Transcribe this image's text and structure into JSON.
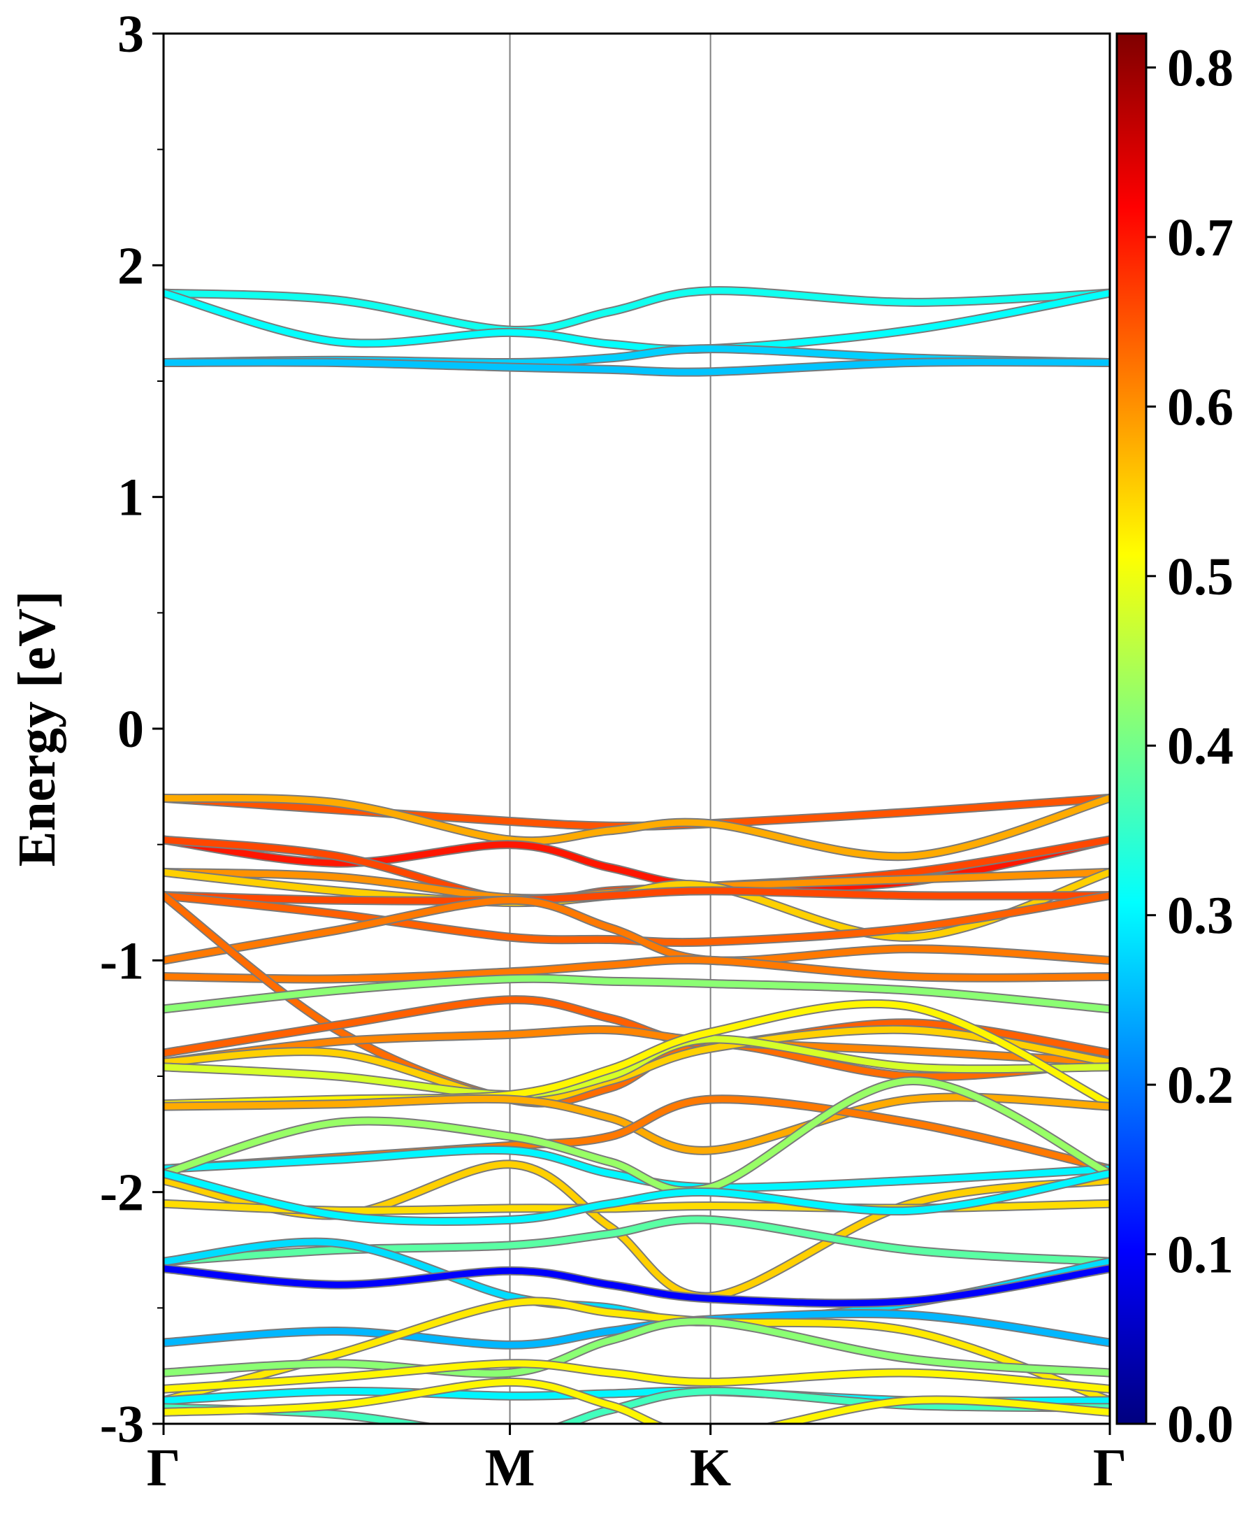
{
  "chart_data": {
    "type": "line",
    "title": "",
    "xlabel": "",
    "ylabel": "Energy [eV]",
    "ylim": [
      -3,
      3
    ],
    "y_ticks": [
      {
        "value": 3,
        "label": "3"
      },
      {
        "value": 2,
        "label": "2"
      },
      {
        "value": 1,
        "label": "1"
      },
      {
        "value": 0,
        "label": "0"
      },
      {
        "value": -1,
        "label": "-1"
      },
      {
        "value": -2,
        "label": "-2"
      },
      {
        "value": -3,
        "label": "-3"
      }
    ],
    "k_points": [
      {
        "label": "Γ",
        "pos": 0
      },
      {
        "label": "M",
        "pos": 0.366
      },
      {
        "label": "K",
        "pos": 0.578
      },
      {
        "label": "Γ",
        "pos": 1
      }
    ],
    "k_sample": [
      0,
      0.183,
      0.366,
      0.472,
      0.578,
      0.789,
      1
    ],
    "colorbar": {
      "range": [
        0,
        0.82
      ],
      "ticks": [
        {
          "value": 0.0,
          "label": "0.0"
        },
        {
          "value": 0.1,
          "label": "0.1"
        },
        {
          "value": 0.2,
          "label": "0.2"
        },
        {
          "value": 0.3,
          "label": "0.3"
        },
        {
          "value": 0.4,
          "label": "0.4"
        },
        {
          "value": 0.5,
          "label": "0.5"
        },
        {
          "value": 0.6,
          "label": "0.6"
        },
        {
          "value": 0.7,
          "label": "0.7"
        },
        {
          "value": 0.8,
          "label": "0.8"
        }
      ],
      "colormap": "jet"
    },
    "series": [
      {
        "values": [
          1.88,
          1.85,
          1.72,
          1.8,
          1.89,
          1.84,
          1.88
        ],
        "weight": 0.32
      },
      {
        "values": [
          1.88,
          1.67,
          1.71,
          1.66,
          1.64,
          1.72,
          1.88
        ],
        "weight": 0.31
      },
      {
        "values": [
          1.58,
          1.59,
          1.58,
          1.6,
          1.64,
          1.6,
          1.58
        ],
        "weight": 0.27
      },
      {
        "values": [
          1.58,
          1.58,
          1.56,
          1.55,
          1.54,
          1.58,
          1.58
        ],
        "weight": 0.26
      },
      {
        "values": [
          -0.3,
          -0.35,
          -0.4,
          -0.42,
          -0.41,
          -0.36,
          -0.3
        ],
        "weight": 0.65
      },
      {
        "values": [
          -0.3,
          -0.32,
          -0.48,
          -0.44,
          -0.41,
          -0.55,
          -0.3
        ],
        "weight": 0.58
      },
      {
        "values": [
          -0.48,
          -0.58,
          -0.5,
          -0.6,
          -0.68,
          -0.66,
          -0.48
        ],
        "weight": 0.7
      },
      {
        "values": [
          -0.48,
          -0.55,
          -0.74,
          -0.7,
          -0.68,
          -0.62,
          -0.48
        ],
        "weight": 0.66
      },
      {
        "values": [
          -0.62,
          -0.64,
          -0.73,
          -0.71,
          -0.68,
          -0.65,
          -0.62
        ],
        "weight": 0.6
      },
      {
        "values": [
          -0.62,
          -0.7,
          -0.75,
          -0.72,
          -0.68,
          -0.9,
          -0.62
        ],
        "weight": 0.55
      },
      {
        "values": [
          -0.72,
          -0.74,
          -0.74,
          -0.72,
          -0.7,
          -0.72,
          -0.72
        ],
        "weight": 0.66
      },
      {
        "values": [
          -0.72,
          -0.8,
          -0.9,
          -0.91,
          -0.92,
          -0.86,
          -0.72
        ],
        "weight": 0.64
      },
      {
        "values": [
          -1.0,
          -0.87,
          -0.74,
          -0.86,
          -1.0,
          -0.95,
          -1.0
        ],
        "weight": 0.62
      },
      {
        "values": [
          -1.07,
          -1.08,
          -1.05,
          -1.02,
          -1.0,
          -1.07,
          -1.07
        ],
        "weight": 0.62
      },
      {
        "values": [
          -0.72,
          -1.3,
          -1.6,
          -1.55,
          -1.36,
          -1.5,
          -1.44
        ],
        "weight": 0.63
      },
      {
        "values": [
          -1.21,
          -1.13,
          -1.08,
          -1.09,
          -1.1,
          -1.13,
          -1.21
        ],
        "weight": 0.42
      },
      {
        "values": [
          -1.4,
          -1.28,
          -1.17,
          -1.25,
          -1.36,
          -1.27,
          -1.4
        ],
        "weight": 0.64
      },
      {
        "values": [
          -1.44,
          -1.35,
          -1.32,
          -1.3,
          -1.35,
          -1.39,
          -1.44
        ],
        "weight": 0.61
      },
      {
        "values": [
          -1.44,
          -1.4,
          -1.6,
          -1.52,
          -1.38,
          -1.3,
          -1.44
        ],
        "weight": 0.55
      },
      {
        "values": [
          -1.46,
          -1.5,
          -1.58,
          -1.5,
          -1.34,
          -1.46,
          -1.46
        ],
        "weight": 0.48
      },
      {
        "values": [
          -1.62,
          -1.6,
          -1.58,
          -1.47,
          -1.31,
          -1.2,
          -1.62
        ],
        "weight": 0.52
      },
      {
        "values": [
          -1.63,
          -1.62,
          -1.6,
          -1.68,
          -1.82,
          -1.6,
          -1.63
        ],
        "weight": 0.58
      },
      {
        "values": [
          -1.9,
          -1.85,
          -1.8,
          -1.76,
          -1.6,
          -1.7,
          -1.9
        ],
        "weight": 0.62
      },
      {
        "values": [
          -1.9,
          -1.86,
          -1.82,
          -1.92,
          -1.98,
          -1.95,
          -1.9
        ],
        "weight": 0.3
      },
      {
        "values": [
          -1.92,
          -1.7,
          -1.76,
          -1.87,
          -1.98,
          -1.52,
          -1.92
        ],
        "weight": 0.43
      },
      {
        "values": [
          -1.95,
          -2.1,
          -1.88,
          -2.15,
          -2.45,
          -2.05,
          -1.95
        ],
        "weight": 0.55
      },
      {
        "values": [
          -2.05,
          -2.08,
          -2.07,
          -2.07,
          -2.06,
          -2.07,
          -2.05
        ],
        "weight": 0.54
      },
      {
        "values": [
          -1.92,
          -2.1,
          -2.12,
          -2.05,
          -2.0,
          -2.08,
          -1.92
        ],
        "weight": 0.3
      },
      {
        "values": [
          -2.3,
          -2.25,
          -2.23,
          -2.18,
          -2.12,
          -2.25,
          -2.3
        ],
        "weight": 0.38
      },
      {
        "values": [
          -2.3,
          -2.22,
          -2.45,
          -2.5,
          -2.56,
          -2.48,
          -2.3
        ],
        "weight": 0.28
      },
      {
        "values": [
          -2.33,
          -2.4,
          -2.34,
          -2.4,
          -2.46,
          -2.47,
          -2.33
        ],
        "weight": 0.1
      },
      {
        "values": [
          -2.65,
          -2.6,
          -2.66,
          -2.6,
          -2.55,
          -2.53,
          -2.65
        ],
        "weight": 0.25
      },
      {
        "values": [
          -2.9,
          -2.7,
          -2.48,
          -2.52,
          -2.56,
          -2.6,
          -2.9
        ],
        "weight": 0.53
      },
      {
        "values": [
          -2.78,
          -2.74,
          -2.78,
          -2.64,
          -2.56,
          -2.72,
          -2.78
        ],
        "weight": 0.42
      },
      {
        "values": [
          -2.85,
          -2.8,
          -2.74,
          -2.78,
          -2.82,
          -2.78,
          -2.85
        ],
        "weight": 0.52
      },
      {
        "values": [
          -2.9,
          -2.86,
          -2.88,
          -2.87,
          -2.86,
          -2.9,
          -2.9
        ],
        "weight": 0.3
      },
      {
        "values": [
          -2.93,
          -2.96,
          -3.05,
          -2.94,
          -2.86,
          -2.92,
          -2.93
        ],
        "weight": 0.36
      },
      {
        "values": [
          -2.95,
          -2.92,
          -2.82,
          -2.92,
          -3.05,
          -2.9,
          -2.95
        ],
        "weight": 0.52
      }
    ]
  }
}
